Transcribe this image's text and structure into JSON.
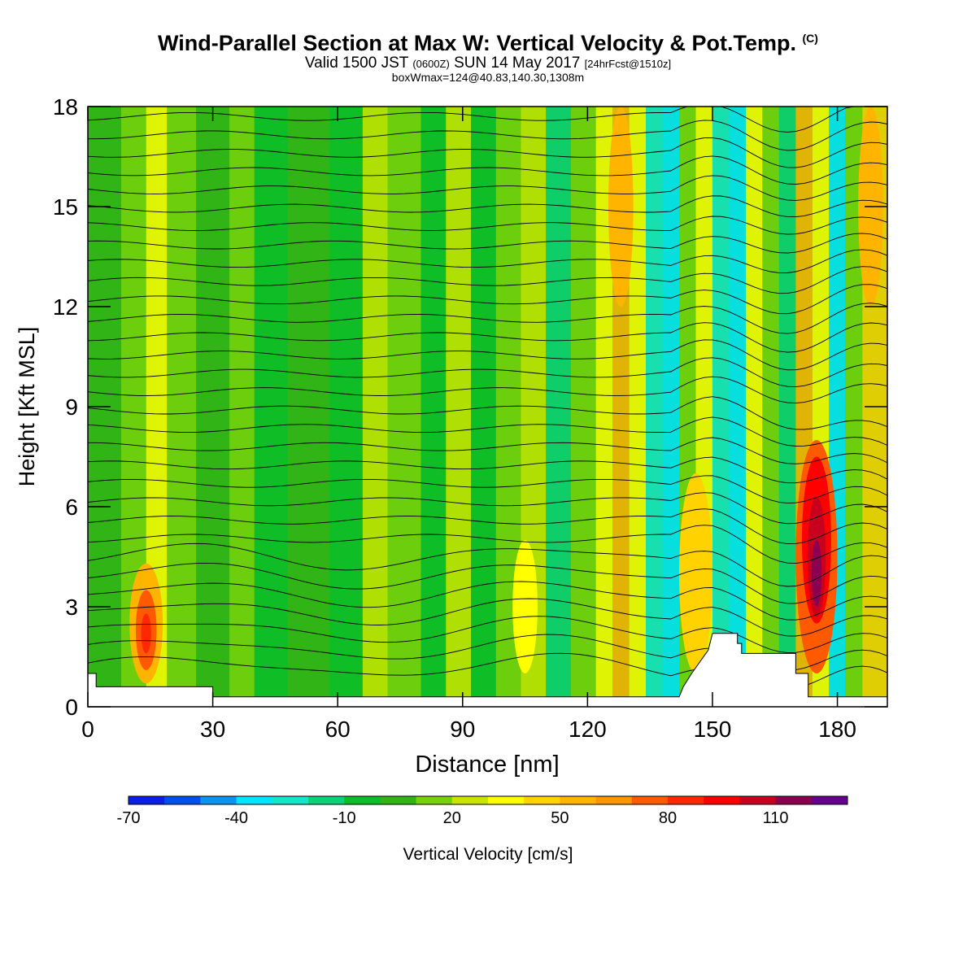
{
  "header": {
    "title": "Wind-Parallel Section at Max W: Vertical Velocity & Pot.Temp.",
    "copyright": "(C)",
    "valid_prefix": "Valid 1500 JST",
    "valid_z": "(0600Z)",
    "valid_date": "SUN 14 May 2017",
    "forecast": "[24hrFcst@1510z]",
    "boxwmax": "boxWmax=124@40.83,140.30,1308m"
  },
  "chart_data": {
    "type": "heatmap",
    "xlabel": "Distance [nm]",
    "ylabel": "Height [Kft MSL]",
    "xlim": [
      0,
      192
    ],
    "ylim": [
      0,
      18
    ],
    "x_ticks": [
      "0",
      "30",
      "60",
      "90",
      "120",
      "150",
      "180"
    ],
    "y_ticks": [
      "0",
      "3",
      "6",
      "9",
      "12",
      "15",
      "18"
    ],
    "colorbar": {
      "label": "Vertical Velocity [cm/s]",
      "tick_labels": [
        "-70",
        "-40",
        "-10",
        "20",
        "50",
        "80",
        "110"
      ],
      "colors": [
        "#0a1ee6",
        "#0050f0",
        "#0a96f0",
        "#00e6ff",
        "#14e6c8",
        "#0ad278",
        "#0abe28",
        "#32b414",
        "#78d20a",
        "#c8e600",
        "#ffff00",
        "#ffd200",
        "#ffb400",
        "#ff9600",
        "#ff5a00",
        "#ff2800",
        "#ff0000",
        "#c8001e",
        "#8c0050",
        "#64008c"
      ]
    },
    "max_w_cm_s": 124,
    "max_w_location": "40.83,140.30,1308m",
    "terrain_kft": [
      [
        0,
        1.0
      ],
      [
        2,
        1.0
      ],
      [
        2,
        0.6
      ],
      [
        30,
        0.6
      ],
      [
        30,
        0.3
      ],
      [
        33,
        0.3
      ],
      [
        33,
        0.3
      ],
      [
        142,
        0.3
      ],
      [
        143,
        0.6
      ],
      [
        145,
        1.0
      ],
      [
        149,
        1.7
      ],
      [
        150,
        2.2
      ],
      [
        156,
        2.2
      ],
      [
        156,
        1.9
      ],
      [
        157,
        1.9
      ],
      [
        157,
        1.6
      ],
      [
        170,
        1.6
      ],
      [
        170,
        1.0
      ],
      [
        173,
        1.0
      ],
      [
        173,
        0.3
      ],
      [
        192,
        0.3
      ]
    ]
  }
}
